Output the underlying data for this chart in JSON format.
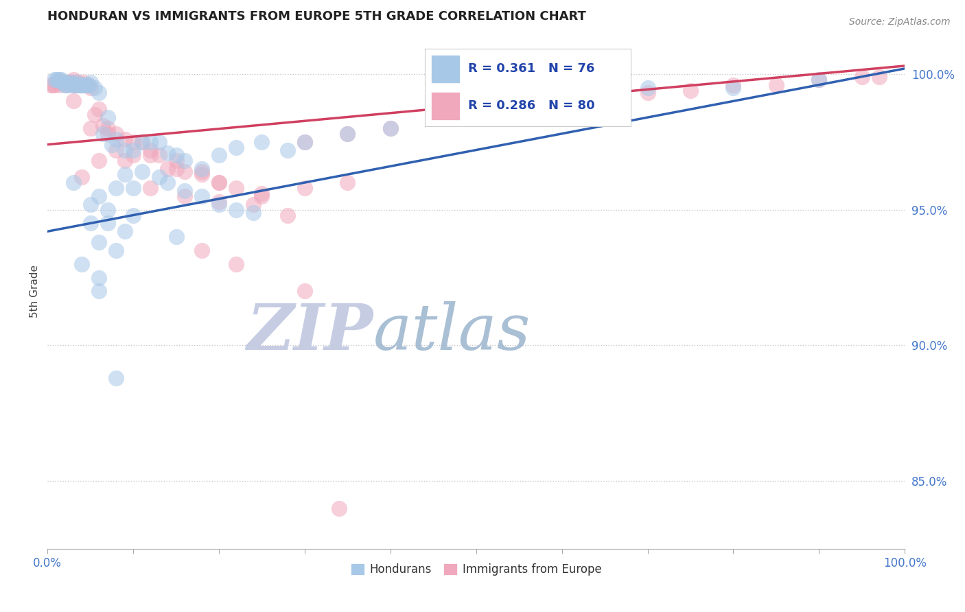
{
  "title": "HONDURAN VS IMMIGRANTS FROM EUROPE 5TH GRADE CORRELATION CHART",
  "source_text": "Source: ZipAtlas.com",
  "ylabel": "5th Grade",
  "xlim": [
    0.0,
    1.0
  ],
  "ylim": [
    0.825,
    1.015
  ],
  "y_ticks": [
    0.85,
    0.9,
    0.95,
    1.0
  ],
  "y_tick_labels": [
    "85.0%",
    "90.0%",
    "95.0%",
    "100.0%"
  ],
  "legend_labels": [
    "Hondurans",
    "Immigrants from Europe"
  ],
  "R_blue": 0.361,
  "N_blue": 76,
  "R_pink": 0.286,
  "N_pink": 80,
  "blue_color": "#A8C8E8",
  "pink_color": "#F0A8BC",
  "blue_line_color": "#3060B0",
  "pink_line_color": "#D04060",
  "background_color": "#FFFFFF",
  "title_color": "#222222",
  "watermark_color_zip": "#C0C8E0",
  "watermark_color_atlas": "#A0B8D0",
  "blue_x": [
    0.008,
    0.01,
    0.012,
    0.014,
    0.016,
    0.018,
    0.02,
    0.022,
    0.024,
    0.026,
    0.028,
    0.03,
    0.032,
    0.034,
    0.036,
    0.038,
    0.04,
    0.042,
    0.044,
    0.046,
    0.048,
    0.05,
    0.055,
    0.06,
    0.065,
    0.07,
    0.075,
    0.08,
    0.09,
    0.1,
    0.11,
    0.12,
    0.13,
    0.14,
    0.15,
    0.16,
    0.18,
    0.2,
    0.22,
    0.25,
    0.28,
    0.09,
    0.11,
    0.13,
    0.08,
    0.1,
    0.06,
    0.14,
    0.16,
    0.18,
    0.2,
    0.22,
    0.24,
    0.05,
    0.07,
    0.09,
    0.06,
    0.08,
    0.04,
    0.06,
    0.3,
    0.35,
    0.4,
    0.45,
    0.55,
    0.6,
    0.7,
    0.8,
    0.9,
    0.03,
    0.05,
    0.07,
    0.1,
    0.15,
    0.06,
    0.08
  ],
  "blue_y": [
    0.998,
    0.998,
    0.998,
    0.998,
    0.998,
    0.997,
    0.996,
    0.996,
    0.997,
    0.996,
    0.997,
    0.996,
    0.996,
    0.997,
    0.996,
    0.996,
    0.996,
    0.996,
    0.996,
    0.996,
    0.996,
    0.997,
    0.995,
    0.993,
    0.978,
    0.984,
    0.974,
    0.976,
    0.972,
    0.972,
    0.975,
    0.975,
    0.975,
    0.971,
    0.97,
    0.968,
    0.965,
    0.97,
    0.973,
    0.975,
    0.972,
    0.963,
    0.964,
    0.962,
    0.958,
    0.958,
    0.955,
    0.96,
    0.957,
    0.955,
    0.952,
    0.95,
    0.949,
    0.945,
    0.945,
    0.942,
    0.938,
    0.935,
    0.93,
    0.925,
    0.975,
    0.978,
    0.98,
    0.985,
    0.99,
    0.992,
    0.995,
    0.995,
    0.998,
    0.96,
    0.952,
    0.95,
    0.948,
    0.94,
    0.92,
    0.888
  ],
  "pink_x": [
    0.004,
    0.006,
    0.008,
    0.01,
    0.012,
    0.014,
    0.016,
    0.018,
    0.02,
    0.022,
    0.024,
    0.026,
    0.028,
    0.03,
    0.032,
    0.034,
    0.036,
    0.038,
    0.04,
    0.042,
    0.044,
    0.046,
    0.048,
    0.05,
    0.055,
    0.06,
    0.065,
    0.07,
    0.08,
    0.09,
    0.1,
    0.11,
    0.12,
    0.13,
    0.14,
    0.15,
    0.16,
    0.18,
    0.2,
    0.22,
    0.25,
    0.03,
    0.05,
    0.07,
    0.09,
    0.12,
    0.15,
    0.18,
    0.2,
    0.08,
    0.1,
    0.06,
    0.04,
    0.3,
    0.35,
    0.4,
    0.45,
    0.5,
    0.55,
    0.6,
    0.65,
    0.7,
    0.75,
    0.8,
    0.85,
    0.9,
    0.95,
    0.97,
    0.25,
    0.3,
    0.35,
    0.12,
    0.16,
    0.2,
    0.24,
    0.28,
    0.18,
    0.22,
    0.3,
    0.34
  ],
  "pink_y": [
    0.996,
    0.996,
    0.996,
    0.997,
    0.997,
    0.996,
    0.997,
    0.997,
    0.997,
    0.996,
    0.997,
    0.997,
    0.997,
    0.998,
    0.996,
    0.996,
    0.997,
    0.996,
    0.996,
    0.997,
    0.996,
    0.996,
    0.996,
    0.995,
    0.985,
    0.987,
    0.981,
    0.98,
    0.978,
    0.976,
    0.975,
    0.975,
    0.972,
    0.97,
    0.965,
    0.968,
    0.964,
    0.963,
    0.96,
    0.958,
    0.956,
    0.99,
    0.98,
    0.978,
    0.968,
    0.97,
    0.965,
    0.964,
    0.96,
    0.972,
    0.97,
    0.968,
    0.962,
    0.975,
    0.978,
    0.98,
    0.984,
    0.984,
    0.988,
    0.992,
    0.992,
    0.993,
    0.994,
    0.996,
    0.996,
    0.998,
    0.999,
    0.999,
    0.955,
    0.958,
    0.96,
    0.958,
    0.955,
    0.953,
    0.952,
    0.948,
    0.935,
    0.93,
    0.92,
    0.84
  ]
}
